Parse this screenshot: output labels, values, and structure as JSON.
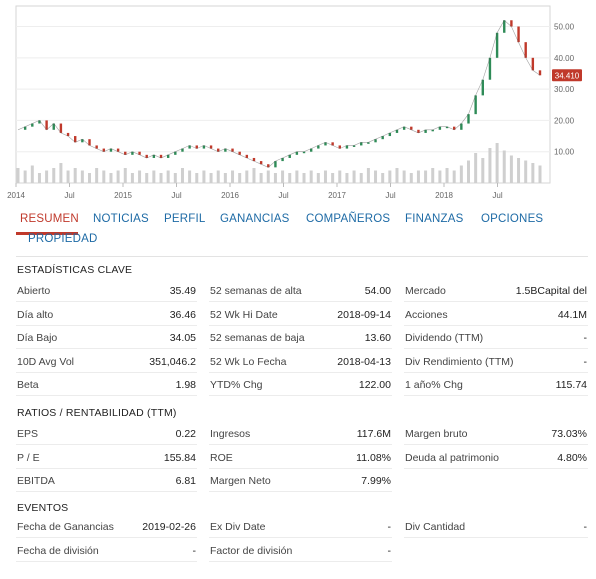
{
  "chart_data": {
    "type": "line",
    "x_tick_labels": [
      "2014",
      "Jul",
      "2015",
      "Jul",
      "2016",
      "Jul",
      "2017",
      "Jul",
      "2018",
      "Jul"
    ],
    "y_tick_labels": [
      "50.00",
      "40.00",
      "30.00",
      "20.00",
      "10.00"
    ],
    "y_ticks": [
      50,
      40,
      30,
      20,
      10
    ],
    "ylim": [
      0,
      54
    ],
    "last_price_label": "34.410",
    "last_price": 34.41,
    "price_series": [
      17,
      18,
      19,
      20,
      17,
      19,
      16,
      15,
      13,
      14,
      12,
      11,
      10,
      11,
      10,
      9,
      10,
      9,
      8,
      9,
      8,
      9,
      10,
      11,
      12,
      11,
      12,
      11,
      10,
      11,
      10,
      9,
      8,
      7,
      6,
      5,
      7,
      8,
      9,
      10,
      10,
      11,
      12,
      13,
      12,
      11,
      12,
      12,
      13,
      13,
      14,
      15,
      16,
      17,
      18,
      17,
      16,
      17,
      17,
      18,
      18,
      17,
      19,
      22,
      28,
      33,
      40,
      48,
      52,
      50,
      45,
      40,
      36,
      34.41
    ],
    "volume_series": [
      6,
      5,
      7,
      4,
      5,
      6,
      8,
      5,
      6,
      5,
      4,
      6,
      5,
      4,
      5,
      6,
      4,
      5,
      4,
      5,
      4,
      5,
      4,
      6,
      5,
      4,
      5,
      4,
      5,
      4,
      5,
      4,
      5,
      6,
      4,
      5,
      4,
      5,
      4,
      5,
      4,
      5,
      4,
      5,
      4,
      5,
      4,
      5,
      4,
      6,
      5,
      4,
      5,
      6,
      5,
      4,
      5,
      5,
      6,
      5,
      6,
      5,
      7,
      9,
      12,
      10,
      14,
      16,
      13,
      11,
      10,
      9,
      8,
      7
    ],
    "up_color": "#2e8b57",
    "down_color": "#c0392b",
    "last_price_color": "#c0392b",
    "grid": true
  },
  "tabs": [
    {
      "label": "RESUMEN",
      "active": true
    },
    {
      "label": "NOTICIAS",
      "active": false
    },
    {
      "label": "PERFIL",
      "active": false
    },
    {
      "label": "GANANCIAS",
      "active": false
    },
    {
      "label": "COMPAÑEROS",
      "active": false
    },
    {
      "label": "FINANZAS",
      "active": false
    },
    {
      "label": "OPCIONES",
      "active": false
    },
    {
      "label": "PROPIEDAD",
      "active": false
    }
  ],
  "sections": {
    "key_stats": {
      "title": "ESTADÍSTICAS CLAVE",
      "rows": [
        [
          [
            "Abierto",
            "35.49"
          ],
          [
            "52 semanas de alta",
            "54.00"
          ],
          [
            "Mercado",
            "1.5BCapital del"
          ]
        ],
        [
          [
            "Día alto",
            "36.46"
          ],
          [
            "52 Wk Hi Date",
            "2018-09-14"
          ],
          [
            "Acciones",
            "44.1M"
          ]
        ],
        [
          [
            "Día Bajo",
            "34.05"
          ],
          [
            "52 semanas de baja",
            "13.60"
          ],
          [
            "Dividendo (TTM)",
            "-"
          ]
        ],
        [
          [
            "10D Avg Vol",
            "351,046.2"
          ],
          [
            "52 Wk Lo Fecha",
            "2018-04-13"
          ],
          [
            "Div Rendimiento (TTM)",
            "-"
          ]
        ],
        [
          [
            "Beta",
            "1.98"
          ],
          [
            "YTD% Chg",
            "122.00"
          ],
          [
            "1 año% Chg",
            "115.74"
          ]
        ]
      ]
    },
    "ratios": {
      "title": "RATIOS / RENTABILIDAD (TTM)",
      "rows": [
        [
          [
            "EPS",
            "0.22"
          ],
          [
            "Ingresos",
            "117.6M"
          ],
          [
            "Margen bruto",
            "73.03%"
          ]
        ],
        [
          [
            "P / E",
            "155.84"
          ],
          [
            "ROE",
            "11.08%"
          ],
          [
            "Deuda al patrimonio",
            "4.80%"
          ]
        ],
        [
          [
            "EBITDA",
            "6.81"
          ],
          [
            "Margen Neto",
            "7.99%"
          ],
          [
            "",
            ""
          ]
        ]
      ]
    },
    "events": {
      "title": "EVENTOS",
      "rows": [
        [
          [
            "Fecha de Ganancias",
            "2019-02-26"
          ],
          [
            "Ex Div Date",
            "-"
          ],
          [
            "Div Cantidad",
            "-"
          ]
        ],
        [
          [
            "Fecha de división",
            "-"
          ],
          [
            "Factor de división",
            "-"
          ],
          [
            "",
            ""
          ]
        ]
      ]
    }
  }
}
